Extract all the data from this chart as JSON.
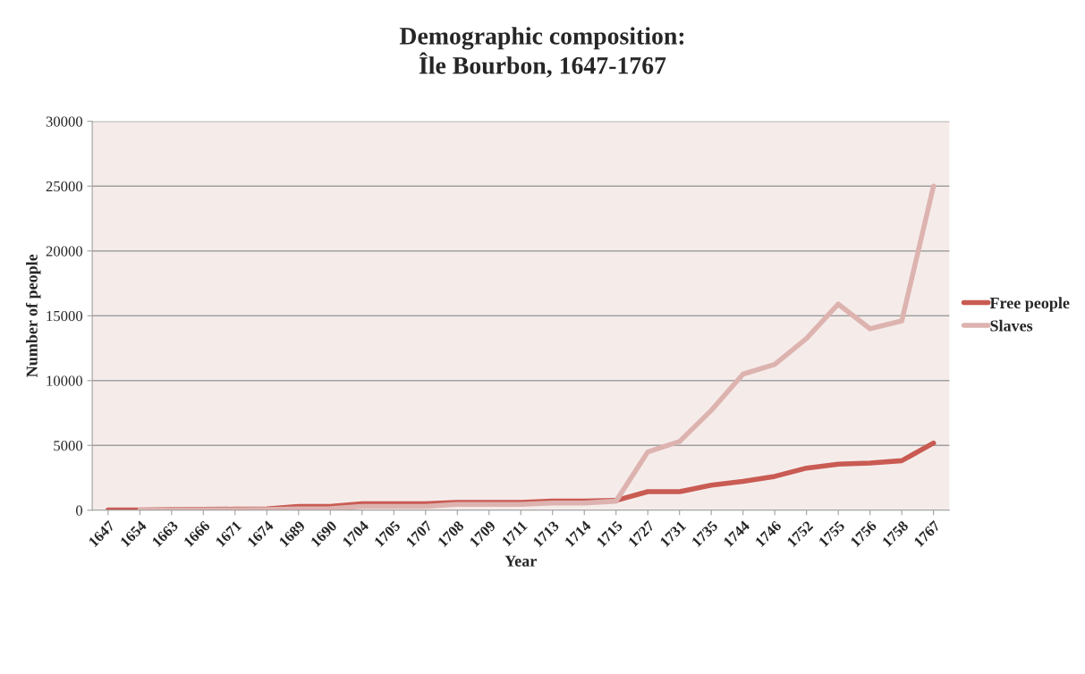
{
  "chart_data": {
    "type": "line",
    "title": "Demographic composition:\nÎle Bourbon, 1647-1767",
    "xlabel": "Year",
    "ylabel": "Number of people",
    "categories": [
      "1647",
      "1654",
      "1663",
      "1666",
      "1671",
      "1674",
      "1689",
      "1690",
      "1704",
      "1705",
      "1707",
      "1708",
      "1709",
      "1711",
      "1713",
      "1714",
      "1715",
      "1727",
      "1731",
      "1735",
      "1744",
      "1746",
      "1752",
      "1755",
      "1756",
      "1758",
      "1767"
    ],
    "series": [
      {
        "name": "Free people",
        "color": "#c95b53",
        "values": [
          20,
          20,
          60,
          70,
          80,
          100,
          300,
          300,
          500,
          500,
          500,
          600,
          600,
          600,
          700,
          700,
          750,
          1430,
          1430,
          1930,
          2230,
          2610,
          3250,
          3550,
          3640,
          3820,
          5180
        ]
      },
      {
        "name": "Slaves",
        "color": "#ddb3b0",
        "values": [
          null,
          10,
          20,
          30,
          40,
          50,
          100,
          120,
          300,
          300,
          300,
          450,
          450,
          450,
          550,
          550,
          700,
          4500,
          5300,
          7700,
          10500,
          11250,
          13250,
          15900,
          14000,
          14600,
          25000
        ]
      }
    ],
    "ylim": [
      0,
      30000
    ],
    "yticks": [
      0,
      5000,
      10000,
      15000,
      20000,
      25000,
      30000
    ],
    "grid": "y",
    "legend": "right",
    "marker": "none",
    "line_style": "solid"
  }
}
